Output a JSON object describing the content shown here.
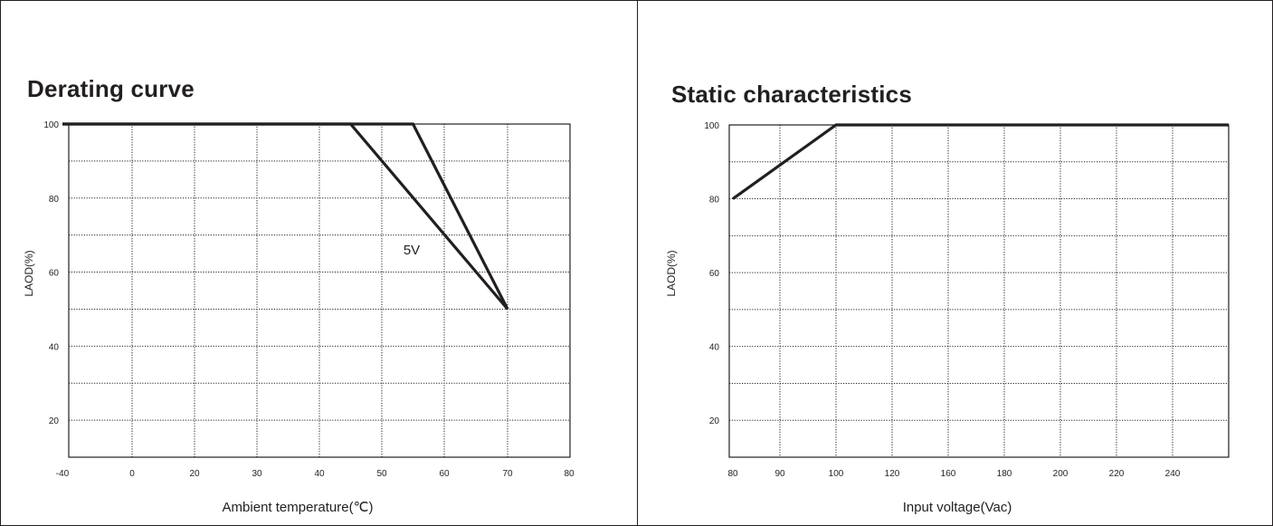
{
  "chart_data": [
    {
      "type": "line",
      "title": "Derating curve",
      "xlabel": "Ambient  temperature(℃)",
      "ylabel": "LAOD(%)",
      "x_ticks": [
        "-40",
        "0",
        "20",
        "30",
        "40",
        "50",
        "60",
        "70",
        "80"
      ],
      "y_ticks": [
        "100",
        "80",
        "60",
        "40",
        "20"
      ],
      "ylim": [
        10,
        100
      ],
      "grid": true,
      "series": [
        {
          "x": [
            "-40",
            "45",
            "70"
          ],
          "values": [
            100,
            100,
            50
          ]
        },
        {
          "x": [
            "-40",
            "55",
            "70"
          ],
          "values": [
            100,
            100,
            50
          ]
        }
      ],
      "annotations": [
        {
          "text": "5V",
          "x": "55",
          "y": 78
        }
      ]
    },
    {
      "type": "line",
      "title": "Static characteristics",
      "xlabel": "Input voltage(Vac)",
      "ylabel": "LAOD(%)",
      "x_ticks": [
        "80",
        "90",
        "100",
        "120",
        "160",
        "180",
        "200",
        "220",
        "240"
      ],
      "y_ticks": [
        "100",
        "80",
        "60",
        "40",
        "20"
      ],
      "ylim": [
        10,
        100
      ],
      "grid": true,
      "series": [
        {
          "x": [
            "80",
            "100",
            "240",
            "end"
          ],
          "values": [
            80,
            100,
            100,
            100
          ]
        }
      ]
    }
  ]
}
